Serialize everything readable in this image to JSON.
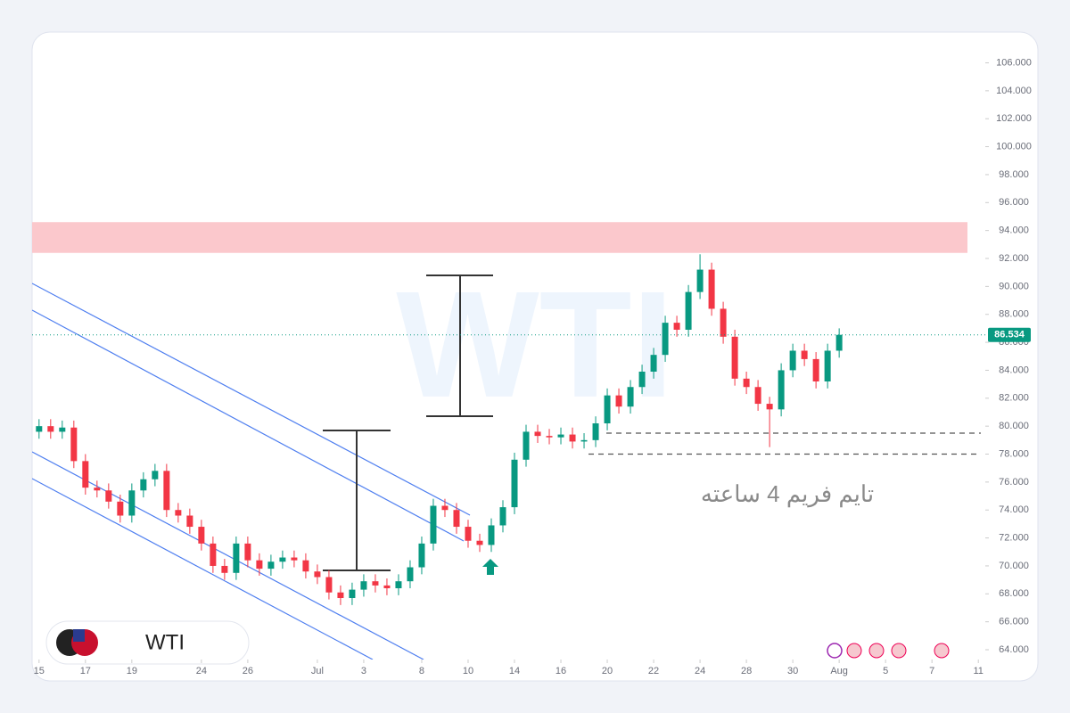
{
  "chart_data": {
    "type": "candlestick",
    "watermark": "WTI",
    "symbol": "WTI",
    "annotation": "تایم فریم 4 ساعته",
    "up_color": "#089981",
    "down_color": "#f23645",
    "open": [
      79.6,
      80.0,
      79.6,
      79.9,
      77.5,
      75.6,
      75.4,
      74.6,
      73.6,
      75.4,
      76.2,
      76.8,
      74.0,
      73.6,
      72.8,
      71.6,
      70.0,
      69.5,
      71.6,
      70.4,
      69.8,
      70.3,
      70.6,
      70.4,
      69.6,
      69.2,
      68.1,
      67.7,
      68.3,
      68.9,
      68.6,
      68.4,
      68.9,
      69.9,
      71.6,
      74.3,
      74.0,
      72.8,
      71.8,
      71.5,
      72.9,
      74.2,
      77.6,
      79.6,
      79.3,
      79.2,
      79.4,
      78.9,
      79.0,
      80.2,
      82.2,
      81.4,
      82.8,
      83.9,
      85.1,
      87.4,
      86.9,
      89.6,
      91.2,
      88.4,
      86.4,
      83.4,
      82.8,
      81.6,
      81.2,
      84.0,
      85.4,
      84.8,
      83.2,
      85.4
    ],
    "high": [
      80.5,
      80.5,
      80.4,
      80.4,
      78.0,
      76.1,
      75.9,
      75.1,
      75.9,
      76.7,
      77.3,
      77.3,
      74.5,
      74.1,
      73.3,
      72.1,
      70.5,
      72.1,
      72.1,
      70.9,
      70.8,
      71.1,
      71.1,
      70.9,
      70.1,
      69.7,
      68.6,
      68.8,
      69.4,
      69.4,
      69.1,
      69.4,
      70.4,
      72.1,
      74.8,
      74.8,
      74.5,
      73.3,
      72.3,
      73.4,
      74.7,
      78.1,
      80.1,
      80.1,
      79.8,
      79.9,
      79.9,
      79.5,
      80.7,
      82.7,
      82.7,
      83.3,
      84.4,
      85.6,
      87.9,
      87.9,
      90.1,
      92.3,
      91.7,
      88.9,
      86.9,
      83.9,
      83.3,
      82.1,
      84.5,
      85.9,
      85.9,
      85.3,
      85.9,
      87.0
    ],
    "low": [
      79.1,
      79.1,
      79.1,
      77.0,
      75.1,
      74.9,
      74.1,
      73.1,
      73.1,
      74.9,
      75.7,
      73.5,
      73.1,
      72.3,
      71.1,
      69.5,
      69.0,
      69.0,
      69.9,
      69.3,
      69.3,
      69.8,
      69.9,
      69.1,
      68.7,
      67.6,
      67.2,
      67.2,
      67.8,
      68.1,
      67.9,
      67.9,
      68.4,
      69.4,
      71.1,
      73.5,
      72.3,
      71.3,
      71.0,
      71.0,
      72.4,
      73.7,
      77.1,
      78.8,
      78.7,
      78.7,
      78.4,
      78.4,
      78.5,
      79.7,
      80.9,
      80.9,
      82.3,
      83.4,
      84.6,
      86.4,
      86.4,
      89.1,
      87.9,
      85.9,
      82.9,
      82.3,
      81.1,
      78.5,
      80.7,
      83.5,
      84.3,
      82.7,
      82.7,
      84.9
    ],
    "close": [
      80.0,
      79.6,
      79.9,
      77.5,
      75.6,
      75.4,
      74.6,
      73.6,
      75.4,
      76.2,
      76.8,
      74.0,
      73.6,
      72.8,
      71.6,
      70.0,
      69.5,
      71.6,
      70.4,
      69.8,
      70.3,
      70.6,
      70.4,
      69.6,
      69.2,
      68.1,
      67.7,
      68.3,
      68.9,
      68.6,
      68.4,
      68.9,
      69.9,
      71.6,
      74.3,
      74.0,
      72.8,
      71.8,
      71.5,
      72.9,
      74.2,
      77.6,
      79.6,
      79.3,
      79.2,
      79.4,
      78.9,
      79.0,
      80.2,
      82.2,
      81.4,
      82.8,
      83.9,
      85.1,
      87.4,
      86.9,
      89.6,
      91.2,
      88.4,
      86.4,
      83.4,
      82.8,
      81.6,
      81.2,
      84.0,
      85.4,
      84.8,
      83.2,
      85.4,
      86.534
    ],
    "last_price": 86.534,
    "resistance_zone": [
      92.4,
      94.6
    ],
    "support_levels": [
      79.5,
      78.0
    ],
    "xlim": [
      -0.6,
      81.6
    ],
    "xticks": [
      {
        "value": 0,
        "label": "15"
      },
      {
        "value": 4,
        "label": "17"
      },
      {
        "value": 8,
        "label": "19"
      },
      {
        "value": 14,
        "label": "24"
      },
      {
        "value": 18,
        "label": "26"
      },
      {
        "value": 24,
        "label": "Jul"
      },
      {
        "value": 28,
        "label": "3"
      },
      {
        "value": 33,
        "label": "8"
      },
      {
        "value": 37,
        "label": "10"
      },
      {
        "value": 41,
        "label": "14"
      },
      {
        "value": 45,
        "label": "16"
      },
      {
        "value": 49,
        "label": "20"
      },
      {
        "value": 53,
        "label": "22"
      },
      {
        "value": 57,
        "label": "24"
      },
      {
        "value": 61,
        "label": "28"
      },
      {
        "value": 65,
        "label": "30"
      },
      {
        "value": 69,
        "label": "Aug"
      },
      {
        "value": 73,
        "label": "5"
      },
      {
        "value": 77,
        "label": "7"
      },
      {
        "value": 81,
        "label": "11"
      }
    ],
    "ylim": [
      63.3,
      108.2
    ],
    "yticks": [
      {
        "value": 64,
        "label": "64.000"
      },
      {
        "value": 66,
        "label": "66.000"
      },
      {
        "value": 68,
        "label": "68.000"
      },
      {
        "value": 70,
        "label": "70.000"
      },
      {
        "value": 72,
        "label": "72.000"
      },
      {
        "value": 74,
        "label": "74.000"
      },
      {
        "value": 76,
        "label": "76.000"
      },
      {
        "value": 78,
        "label": "78.000"
      },
      {
        "value": 80,
        "label": "80.000"
      },
      {
        "value": 82,
        "label": "82.000"
      },
      {
        "value": 84,
        "label": "84.000"
      },
      {
        "value": 86,
        "label": "86.000"
      },
      {
        "value": 88,
        "label": "88.000"
      },
      {
        "value": 90,
        "label": "90.000"
      },
      {
        "value": 92,
        "label": "92.000"
      },
      {
        "value": 94,
        "label": "94.000"
      },
      {
        "value": 96,
        "label": "96.000"
      },
      {
        "value": 98,
        "label": "98.000"
      },
      {
        "value": 100,
        "label": "100.000"
      },
      {
        "value": 102,
        "label": "102.000"
      },
      {
        "value": 104,
        "label": "104.000"
      },
      {
        "value": 106,
        "label": "106.000"
      }
    ]
  }
}
